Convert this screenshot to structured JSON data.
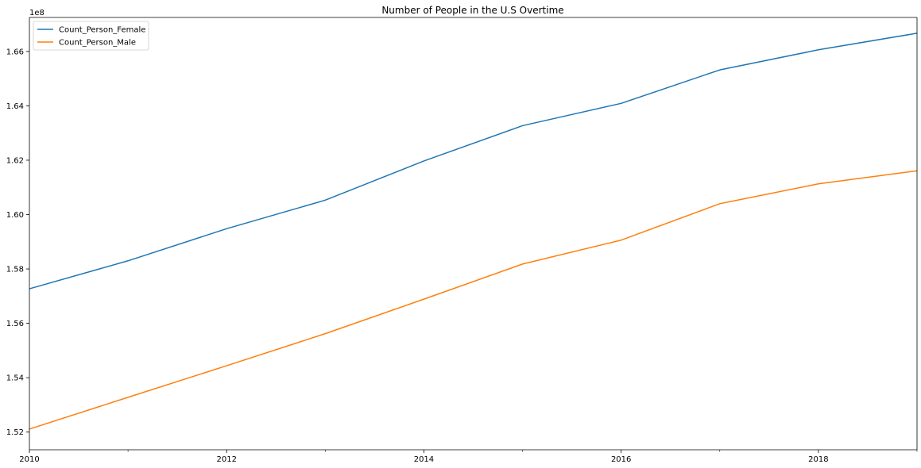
{
  "chart_data": {
    "type": "line",
    "title": "Number of People in the U.S Overtime",
    "xlabel": "",
    "ylabel": "",
    "y_offset_label": "1e8",
    "x": [
      2010,
      2011,
      2012,
      2013,
      2014,
      2015,
      2016,
      2017,
      2018,
      2019
    ],
    "xlim": [
      2010,
      2019
    ],
    "ylim": [
      1.5135,
      1.6725
    ],
    "x_ticks": [
      2010,
      2012,
      2014,
      2016,
      2018
    ],
    "x_tick_labels": [
      "2010",
      "2012",
      "2014",
      "2016",
      "2018"
    ],
    "x_minor_ticks": [
      2011,
      2013,
      2015,
      2017,
      2019
    ],
    "y_ticks": [
      1.52,
      1.54,
      1.56,
      1.58,
      1.6,
      1.62,
      1.64,
      1.66
    ],
    "y_tick_labels": [
      "1.52",
      "1.54",
      "1.56",
      "1.58",
      "1.60",
      "1.62",
      "1.64",
      "1.66"
    ],
    "grid": false,
    "legend_position": "top-left",
    "series": [
      {
        "name": "Count_Person_Female",
        "color": "#1f77b4",
        "values": [
          1.5727,
          1.583,
          1.5948,
          1.6053,
          1.6197,
          1.6327,
          1.6409,
          1.6532,
          1.6606,
          1.6667
        ]
      },
      {
        "name": "Count_Person_Male",
        "color": "#ff7f0e",
        "values": [
          1.5211,
          1.5328,
          1.5444,
          1.5562,
          1.5689,
          1.5818,
          1.5906,
          1.604,
          1.6113,
          1.6161
        ]
      }
    ]
  }
}
